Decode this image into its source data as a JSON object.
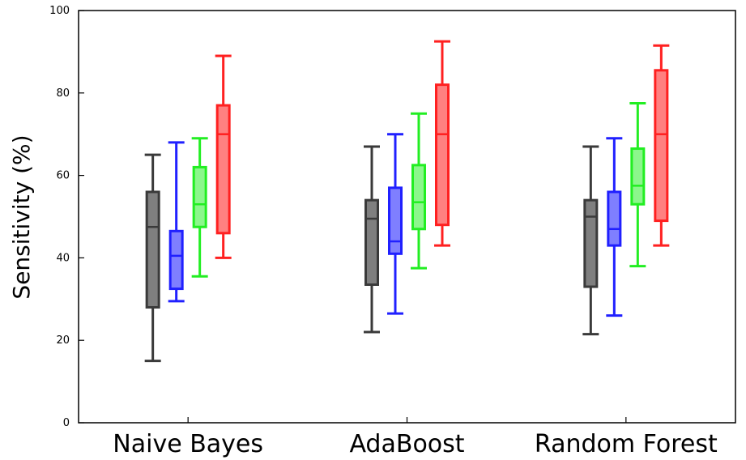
{
  "chart_data": {
    "type": "boxplot",
    "ylabel": "Sensitivity (%)",
    "ylim": [
      0,
      100
    ],
    "yticks": [
      0,
      20,
      40,
      60,
      80,
      100
    ],
    "grid": false,
    "categories": [
      "Naive Bayes",
      "AdaBoost",
      "Random Forest"
    ],
    "series": [
      {
        "color": "#3a3a3a",
        "fill": "#7f7f7f",
        "boxes": [
          {
            "min": 15,
            "q1": 28,
            "median": 47.5,
            "q3": 56,
            "max": 65
          },
          {
            "min": 22,
            "q1": 33.5,
            "median": 49.5,
            "q3": 54,
            "max": 67
          },
          {
            "min": 21.5,
            "q1": 33,
            "median": 50,
            "q3": 54,
            "max": 67
          }
        ]
      },
      {
        "color": "#2020ff",
        "fill": "#7f7fff",
        "boxes": [
          {
            "min": 29.5,
            "q1": 32.5,
            "median": 40.5,
            "q3": 46.5,
            "max": 68
          },
          {
            "min": 26.5,
            "q1": 41,
            "median": 44,
            "q3": 57,
            "max": 70
          },
          {
            "min": 26,
            "q1": 43,
            "median": 47,
            "q3": 56,
            "max": 69
          }
        ]
      },
      {
        "color": "#22ee22",
        "fill": "#8cf78c",
        "boxes": [
          {
            "min": 35.5,
            "q1": 47.5,
            "median": 53,
            "q3": 62,
            "max": 69
          },
          {
            "min": 37.5,
            "q1": 47,
            "median": 53.5,
            "q3": 62.5,
            "max": 75
          },
          {
            "min": 38,
            "q1": 53,
            "median": 57.5,
            "q3": 66.5,
            "max": 77.5
          }
        ]
      },
      {
        "color": "#ff2020",
        "fill": "#ff8080",
        "boxes": [
          {
            "min": 40,
            "q1": 46,
            "median": 70,
            "q3": 77,
            "max": 89
          },
          {
            "min": 43,
            "q1": 48,
            "median": 70,
            "q3": 82,
            "max": 92.5
          },
          {
            "min": 43,
            "q1": 49,
            "median": 70,
            "q3": 85.5,
            "max": 91.5
          }
        ]
      }
    ]
  }
}
